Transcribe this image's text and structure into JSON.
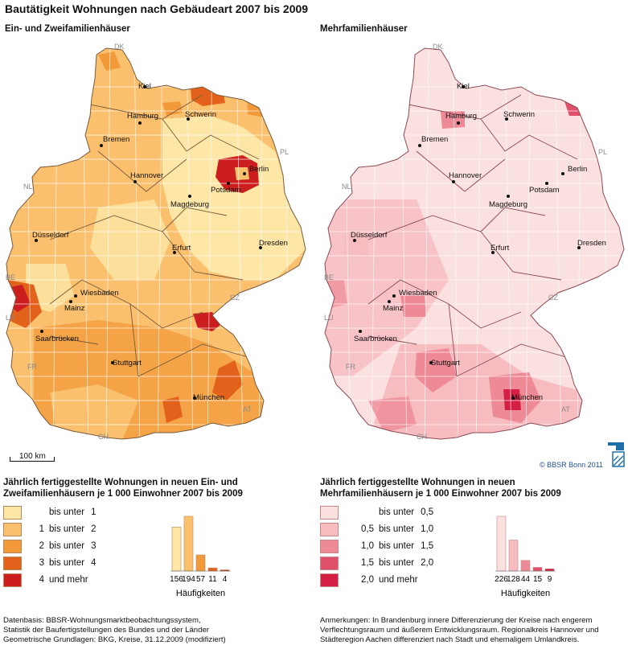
{
  "title": "Bautätigkeit Wohnungen nach Gebäudeart 2007 bis 2009",
  "left_map": {
    "subtitle": "Ein- und Zweifamilienhäuser",
    "legend_title_1": "Jährlich fertiggestellte Wohnungen in neuen Ein- und",
    "legend_title_2": "Zweifamilienhäusern je 1 000 Einwohner 2007 bis 2009",
    "classes": [
      {
        "from": "",
        "sep": "bis unter",
        "to": "1",
        "color": "#fde6a6"
      },
      {
        "from": "1",
        "sep": "bis unter",
        "to": "2",
        "color": "#fbc06e"
      },
      {
        "from": "2",
        "sep": "bis unter",
        "to": "3",
        "color": "#f29a3a"
      },
      {
        "from": "3",
        "sep": "bis unter",
        "to": "4",
        "color": "#e2621c"
      },
      {
        "from": "4",
        "sep": "und mehr",
        "to": "",
        "color": "#cc1e1e"
      }
    ],
    "histogram": {
      "counts": [
        156,
        194,
        57,
        11,
        4
      ],
      "labels": [
        "156",
        "194",
        "57",
        "11",
        "4"
      ],
      "caption": "Häufigkeiten"
    }
  },
  "right_map": {
    "subtitle": "Mehrfamilienhäuser",
    "legend_title_1": "Jährlich fertiggestellte Wohnungen in neuen",
    "legend_title_2": "Mehrfamilienhäusern je 1 000 Einwohner 2007 bis 2009",
    "classes": [
      {
        "from": "",
        "sep": "bis unter",
        "to": "0,5",
        "color": "#fbe0e0"
      },
      {
        "from": "0,5",
        "sep": "bis unter",
        "to": "1,0",
        "color": "#f6bcc0"
      },
      {
        "from": "1,0",
        "sep": "bis unter",
        "to": "1,5",
        "color": "#ee8a96"
      },
      {
        "from": "1,5",
        "sep": "bis unter",
        "to": "2,0",
        "color": "#e0506a"
      },
      {
        "from": "2,0",
        "sep": "und mehr",
        "to": "",
        "color": "#d41f45"
      }
    ],
    "histogram": {
      "counts": [
        226,
        128,
        44,
        15,
        9
      ],
      "labels": [
        "226",
        "128",
        "44",
        "15",
        "9"
      ],
      "caption": "Häufigkeiten"
    }
  },
  "cities": [
    "Kiel",
    "Hamburg",
    "Schwerin",
    "Bremen",
    "Hannover",
    "Berlin",
    "Potsdam",
    "Magdeburg",
    "Düsseldorf",
    "Erfurt",
    "Dresden",
    "Wiesbaden",
    "Mainz",
    "Saarbrücken",
    "Stuttgart",
    "München"
  ],
  "countries": [
    "DK",
    "PL",
    "NL",
    "BE",
    "LU",
    "CZ",
    "FR",
    "AT",
    "CH"
  ],
  "scale_label": "100 km",
  "copyright": "© BBSR Bonn 2011",
  "footnote_left": [
    "Datenbasis: BBSR-Wohnungsmarktbeobachtungssystem,",
    "Statistik der Baufertigstellungen des Bundes und der Länder",
    "Geometrische Grundlagen: BKG, Kreise, 31.12.2009 (modifiziert)"
  ],
  "footnote_right": [
    "Anmerkungen: In Brandenburg innere Differenzierung der Kreise nach engerem",
    "Verflechtungsraum und äußerem Entwicklungsraum. Regionalkreis Hannover und",
    "Städteregion Aachen differenziert nach Stadt und ehemaligem Umlandkreis."
  ]
}
